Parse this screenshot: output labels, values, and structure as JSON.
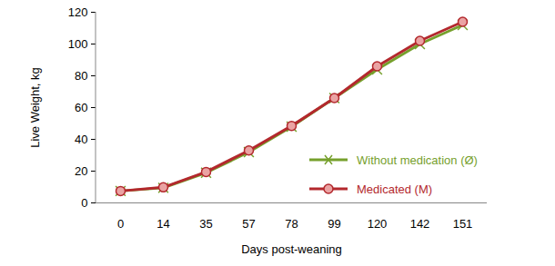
{
  "chart_data": {
    "type": "line",
    "x_label": "Days post-weaning",
    "y_label": "Live Weight, kg",
    "categories": [
      "0",
      "14",
      "35",
      "57",
      "78",
      "99",
      "120",
      "142",
      "151"
    ],
    "series": [
      {
        "name": "Without medication (Ø)",
        "color": "#76a02c",
        "marker": "x",
        "values": [
          7.5,
          9.5,
          19,
          32,
          48,
          66,
          84,
          100,
          112
        ]
      },
      {
        "name": "Medicated (M)",
        "color": "#b3282d",
        "marker": "circle",
        "values": [
          7.5,
          9.8,
          19.5,
          33,
          48.5,
          66,
          86,
          102,
          114
        ]
      }
    ],
    "ylim": [
      0,
      120
    ],
    "yticks": [
      0,
      20,
      40,
      60,
      80,
      100,
      120
    ],
    "grid": false,
    "legend": "lower right"
  }
}
